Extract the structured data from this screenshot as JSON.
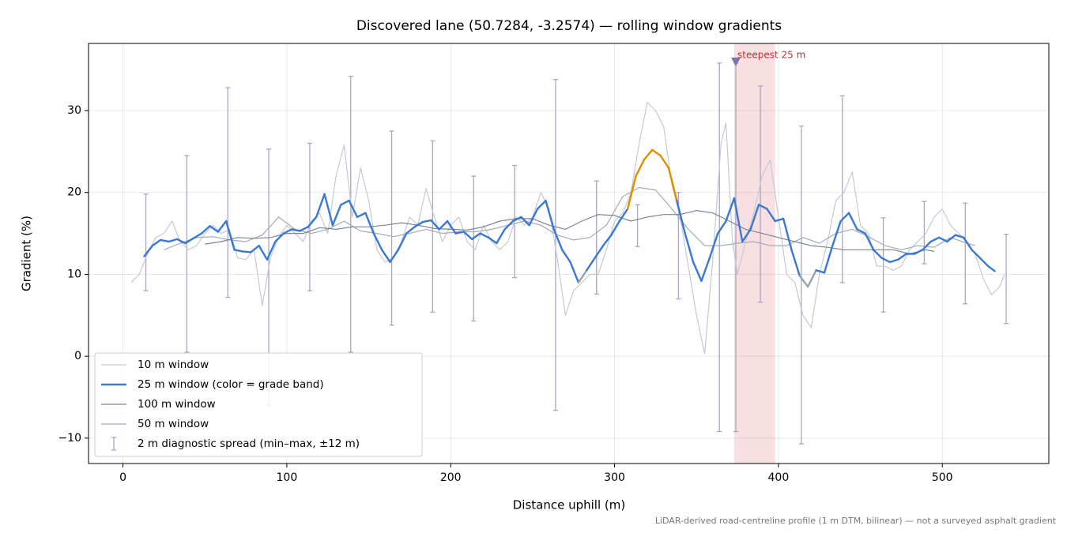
{
  "chart_data": {
    "type": "line",
    "title": "Discovered lane (50.7284, -3.2574) — rolling window gradients",
    "xlabel": "Distance uphill (m)",
    "ylabel": "Gradient (%)",
    "footnote": "LiDAR-derived road-centreline profile (1 m DTM, bilinear) — not a surveyed asphalt gradient",
    "xlim": [
      -21,
      565
    ],
    "ylim": [
      -13.1,
      38.2
    ],
    "xticks": [
      0,
      100,
      200,
      300,
      400,
      500
    ],
    "yticks": [
      {
        "value": -10,
        "label": "−10"
      },
      0,
      10,
      20,
      30
    ],
    "grid": true,
    "legend": "lower left",
    "series": [
      {
        "name": "10 m window",
        "color": "#c3cad5",
        "width": 1.2,
        "x": [
          5,
          10,
          15,
          20,
          25,
          30,
          35,
          40,
          45,
          50,
          55,
          60,
          65,
          70,
          75,
          80,
          85,
          90,
          95,
          100,
          105,
          110,
          115,
          120,
          125,
          130,
          135,
          140,
          145,
          150,
          155,
          160,
          165,
          170,
          175,
          180,
          185,
          190,
          195,
          200,
          205,
          210,
          215,
          220,
          225,
          230,
          235,
          240,
          245,
          250,
          255,
          260,
          265,
          270,
          275,
          280,
          285,
          290,
          295,
          300,
          305,
          310,
          315,
          320,
          325,
          330,
          335,
          340,
          345,
          350,
          355,
          360,
          365,
          368,
          372,
          375,
          380,
          385,
          390,
          395,
          400,
          405,
          410,
          415,
          420,
          425,
          430,
          435,
          440,
          445,
          450,
          455,
          460,
          465,
          470,
          475,
          480,
          485,
          490,
          495,
          500,
          505,
          510,
          515,
          520,
          525,
          530,
          535,
          538
        ],
        "values": [
          9,
          10,
          12.5,
          14.5,
          15,
          16.5,
          14,
          13,
          13.5,
          15,
          16,
          15,
          15.5,
          12,
          11.8,
          13,
          6.2,
          12,
          14.5,
          16,
          15,
          14,
          16.5,
          17.5,
          15,
          22,
          25.8,
          17,
          23,
          19,
          13,
          11.5,
          12,
          14,
          17,
          16,
          20.5,
          17,
          14,
          16,
          17,
          14,
          13,
          16,
          14,
          13,
          14,
          17,
          16,
          17,
          20,
          18,
          12,
          5,
          8,
          9,
          10,
          10,
          13,
          16.5,
          17.5,
          20,
          26,
          31,
          30,
          28,
          21,
          17,
          11,
          5,
          0.3,
          12,
          26,
          28.5,
          14,
          10,
          14,
          17.5,
          22,
          24,
          17,
          10,
          9,
          5,
          3.5,
          10,
          14,
          19,
          20,
          22.5,
          16,
          15,
          11,
          11,
          10.5,
          11,
          13,
          14,
          15,
          17,
          18,
          16,
          15,
          14,
          12.5,
          9.5,
          7.5,
          8.5,
          10
        ]
      },
      {
        "name": "50 m window",
        "color": "#a3aabb",
        "width": 1.2,
        "x": [
          25,
          35,
          45,
          55,
          65,
          75,
          85,
          95,
          105,
          115,
          125,
          135,
          145,
          155,
          165,
          175,
          185,
          195,
          205,
          215,
          225,
          235,
          245,
          255,
          265,
          275,
          285,
          295,
          305,
          315,
          325,
          335,
          345,
          355,
          365,
          375,
          385,
          395,
          405,
          415,
          425,
          435,
          445,
          455,
          465,
          475,
          485,
          495,
          505,
          515,
          520
        ],
        "values": [
          13,
          13.8,
          14.5,
          14.6,
          14.2,
          14,
          14.8,
          17,
          15.5,
          15,
          15.5,
          16.5,
          15.3,
          15,
          14.6,
          15,
          15.5,
          15,
          15.2,
          15.2,
          15.5,
          16,
          16.5,
          16,
          14.8,
          14.2,
          14.5,
          16,
          19.5,
          20.6,
          20.3,
          18,
          15.5,
          13.5,
          13.5,
          13.8,
          14,
          13.5,
          13.5,
          14.5,
          13.8,
          15,
          15.5,
          14.6,
          13.5,
          13,
          13.5,
          13.3,
          14.5,
          13.8,
          13.5
        ]
      },
      {
        "name": "100 m window",
        "color": "#7b8494",
        "width": 1.2,
        "x": [
          50,
          60,
          70,
          80,
          90,
          100,
          110,
          120,
          130,
          140,
          150,
          160,
          170,
          180,
          190,
          200,
          210,
          220,
          230,
          240,
          250,
          260,
          270,
          280,
          290,
          300,
          310,
          320,
          330,
          340,
          350,
          360,
          370,
          380,
          390,
          400,
          410,
          420,
          430,
          440,
          450,
          460,
          470,
          480,
          490,
          495
        ],
        "values": [
          13.7,
          14,
          14.5,
          14.4,
          14.5,
          15,
          15,
          15.7,
          15.5,
          15.8,
          15.8,
          16,
          16.3,
          16,
          15.6,
          15.5,
          15.4,
          15.8,
          16.5,
          16.8,
          16.8,
          16,
          15.5,
          16.5,
          17.3,
          17.2,
          16.5,
          17,
          17.3,
          17.3,
          17.8,
          17.5,
          16.5,
          15.5,
          15,
          14.5,
          14,
          13.5,
          13.3,
          13,
          13,
          13,
          13,
          12.5,
          13,
          12.8
        ]
      },
      {
        "name": "25 m window (color = grade band)",
        "color": "#3a78d4",
        "width": 2.4,
        "bands": [
          {
            "above": 25,
            "color": "#c0303a"
          },
          {
            "above": 20,
            "color": "#e08c00"
          },
          {
            "below": 10,
            "color": "#98a2ad"
          }
        ],
        "x": [
          13,
          18,
          23,
          28,
          33,
          38,
          43,
          48,
          53,
          58,
          63,
          68,
          73,
          78,
          83,
          88,
          93,
          98,
          103,
          108,
          113,
          118,
          123,
          128,
          133,
          138,
          143,
          148,
          153,
          158,
          163,
          168,
          173,
          178,
          183,
          188,
          193,
          198,
          203,
          208,
          213,
          218,
          223,
          228,
          233,
          238,
          243,
          248,
          253,
          258,
          263,
          268,
          273,
          278,
          283,
          288,
          293,
          298,
          303,
          308,
          313,
          318,
          323,
          328,
          333,
          338,
          343,
          348,
          353,
          358,
          363,
          368,
          373,
          378,
          383,
          388,
          393,
          398,
          403,
          408,
          413,
          418,
          423,
          428,
          433,
          438,
          443,
          448,
          453,
          458,
          463,
          468,
          473,
          478,
          483,
          488,
          493,
          498,
          503,
          508,
          513,
          518,
          523,
          528,
          532
        ],
        "values": [
          12.2,
          13.5,
          14.2,
          14,
          14.3,
          13.8,
          14.4,
          15,
          15.9,
          15.2,
          16.5,
          13,
          12.8,
          12.7,
          13.5,
          11.8,
          14,
          15,
          15.5,
          15.3,
          15.8,
          17,
          19.8,
          16,
          18.5,
          19,
          17,
          17.5,
          15,
          13,
          11.5,
          13,
          15,
          15.8,
          16.4,
          16.6,
          15.5,
          16.5,
          15,
          15.2,
          14.3,
          15,
          14.5,
          13.8,
          15.5,
          16.5,
          17,
          16,
          18,
          19,
          15.5,
          13,
          11.5,
          9,
          10.5,
          12,
          13.5,
          14.8,
          16.5,
          18,
          22,
          24,
          25.2,
          24.5,
          23,
          19,
          15,
          11.5,
          9.2,
          12,
          15,
          16.5,
          19.3,
          14,
          15.5,
          18.5,
          18,
          16.5,
          16.8,
          13,
          9.8,
          8.5,
          10.5,
          10.2,
          13.5,
          16.5,
          17.5,
          15.5,
          15,
          13,
          12,
          11.5,
          11.8,
          12.5,
          12.5,
          13,
          14,
          14.5,
          14,
          14.8,
          14.5,
          13,
          12,
          11,
          10.4
        ]
      }
    ],
    "error_bars": {
      "name": "2 m diagnostic spread (min–max, ±12 m)",
      "color": "#a9a5c6",
      "x": [
        14,
        39,
        64,
        89,
        114,
        139,
        164,
        189,
        214,
        239,
        264,
        289,
        314,
        339,
        364,
        374,
        389,
        414,
        439,
        464,
        489,
        514,
        539
      ],
      "low": [
        8,
        0.5,
        7.2,
        -6,
        8,
        0.5,
        3.8,
        5.4,
        4.3,
        9.6,
        -6.6,
        7.6,
        13.4,
        7,
        -9.2,
        -9.2,
        6.6,
        -10.7,
        9,
        5.4,
        11.3,
        6.4,
        4
      ],
      "high": [
        19.8,
        24.5,
        32.8,
        25.3,
        26,
        34.2,
        27.5,
        26.3,
        22,
        23.3,
        33.8,
        21.4,
        18.5,
        20,
        35.8,
        35.8,
        33,
        28.1,
        31.8,
        16.9,
        18.9,
        18.7,
        14.9
      ]
    },
    "highlight": {
      "label": "steepest 25 m",
      "x": [
        373,
        398
      ],
      "marker_x": 374,
      "marker_y": 36,
      "color": "#d9545c"
    }
  }
}
